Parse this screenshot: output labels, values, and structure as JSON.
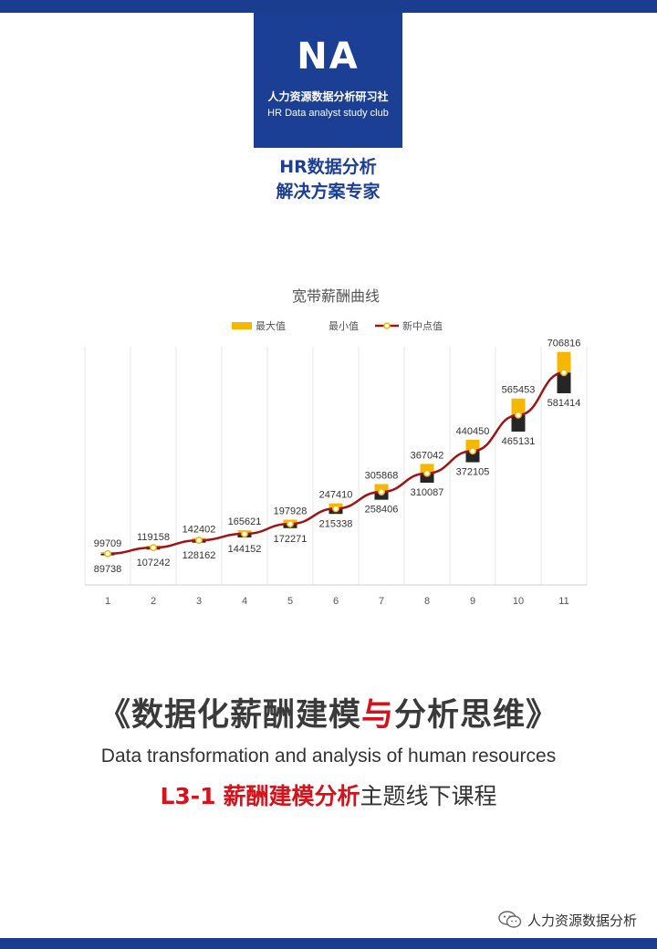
{
  "logo": {
    "mark": "NA",
    "name_cn": "人力资源数据分析研习社",
    "name_en": "HR Data analyst study club"
  },
  "tagline": {
    "line1": "HR数据分析",
    "line2": "解决方案专家"
  },
  "chart_data": {
    "type": "bar",
    "title": "宽带薪酬曲线",
    "legend": [
      "最大值",
      "最小值",
      "新中点值"
    ],
    "legend_position": "top",
    "categories": [
      "1",
      "2",
      "3",
      "4",
      "5",
      "6",
      "7",
      "8",
      "9",
      "10",
      "11"
    ],
    "series": [
      {
        "name": "最大值",
        "values": [
          99709,
          119158,
          142402,
          165621,
          197928,
          247410,
          305868,
          367042,
          440450,
          565453,
          706816
        ]
      },
      {
        "name": "最小值",
        "values": [
          89738,
          107242,
          128162,
          144152,
          172271,
          215338,
          258406,
          310087,
          372105,
          465131,
          581414
        ]
      }
    ],
    "ylim": [
      0,
      800000
    ],
    "grid": "vertical",
    "colors": {
      "max": "#f5b700",
      "min": "#262626",
      "midpoint_line": "#a01414"
    }
  },
  "headline": {
    "open_quote": "《",
    "part1": "数据化薪酬建模",
    "highlight": "与",
    "part2": "分析思维",
    "close_quote": "》"
  },
  "subtitle": "Data transformation and analysis of human resources",
  "course": {
    "code": "L3-1",
    "highlight": "薪酬建模分析",
    "rest": "主题线下课程"
  },
  "wechat": {
    "account": "人力资源数据分析",
    "icon": "wechat-icon"
  }
}
